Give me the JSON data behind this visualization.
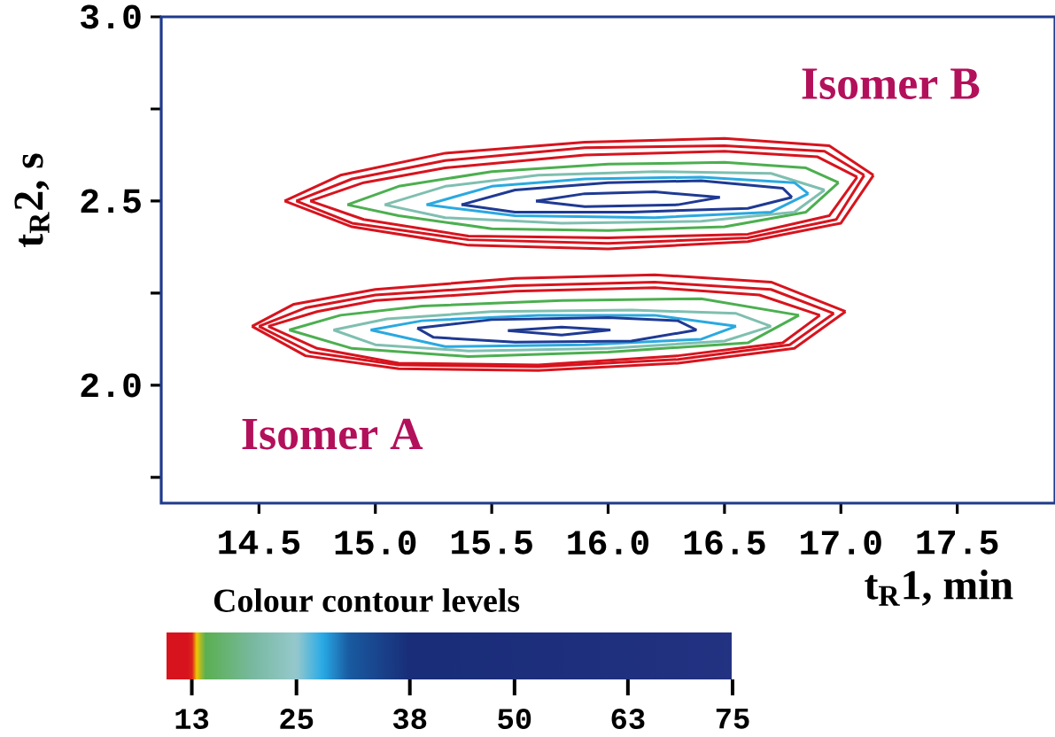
{
  "chart_data": {
    "type": "line",
    "xlabel": "t$_{R}$1, min",
    "ylabel": "t$_{R}$2, s",
    "clabel": "Colour contour levels",
    "annotations": [
      "Isomer B",
      "Isomer A"
    ],
    "xlim": [
      14.08,
      17.92
    ],
    "ylim": [
      1.68,
      3.0
    ],
    "xticks": [
      14.5,
      {
        "value": 15,
        "label": "15.0"
      },
      15.5,
      {
        "value": 16,
        "label": "16.0"
      },
      16.5,
      {
        "value": 17,
        "label": "17.0"
      },
      17.5
    ],
    "yticks": [
      {
        "value": 1.75,
        "label": null
      },
      {
        "value": 2,
        "label": "2.0"
      },
      {
        "value": 2.25,
        "label": null
      },
      2.5,
      {
        "value": 2.75,
        "label": null
      },
      {
        "value": 3,
        "label": "3.0"
      }
    ],
    "clim": [
      10,
      75
    ],
    "cticks": [
      13,
      25,
      38,
      50,
      63,
      75
    ],
    "series": [
      {
        "color": "#d7141e",
        "x": [
          14.61,
          14.85,
          15.3,
          15.9,
          16.5,
          16.95,
          17.14
        ],
        "values": [
          2.5,
          2.57,
          2.63,
          2.66,
          2.67,
          2.65,
          2.57
        ]
      },
      {
        "color": "#d7141e",
        "x": [
          14.61,
          14.9,
          15.4,
          16.0,
          16.6,
          17.0,
          17.14
        ],
        "values": [
          2.5,
          2.43,
          2.38,
          2.37,
          2.39,
          2.44,
          2.57
        ]
      },
      {
        "color": "#d7141e",
        "x": [
          14.66,
          14.9,
          15.3,
          15.9,
          16.5,
          16.93,
          17.1
        ],
        "values": [
          2.5,
          2.56,
          2.61,
          2.645,
          2.65,
          2.635,
          2.57
        ]
      },
      {
        "color": "#d7141e",
        "x": [
          14.66,
          14.9,
          15.4,
          16.0,
          16.6,
          16.98,
          17.1
        ],
        "values": [
          2.5,
          2.44,
          2.395,
          2.385,
          2.4,
          2.45,
          2.57
        ]
      },
      {
        "color": "#d7141e",
        "x": [
          14.72,
          14.95,
          15.3,
          15.9,
          16.5,
          16.9,
          17.07
        ],
        "values": [
          2.5,
          2.55,
          2.59,
          2.625,
          2.635,
          2.62,
          2.565
        ]
      },
      {
        "color": "#d7141e",
        "x": [
          14.72,
          14.95,
          15.4,
          16.0,
          16.6,
          16.95,
          17.07
        ],
        "values": [
          2.5,
          2.45,
          2.405,
          2.4,
          2.41,
          2.46,
          2.565
        ]
      },
      {
        "color": "#4caf50",
        "x": [
          14.88,
          15.1,
          15.5,
          16.0,
          16.5,
          16.85,
          16.99
        ],
        "values": [
          2.49,
          2.54,
          2.58,
          2.6,
          2.605,
          2.59,
          2.55
        ]
      },
      {
        "color": "#4caf50",
        "x": [
          14.88,
          15.1,
          15.5,
          16.0,
          16.5,
          16.85,
          16.99
        ],
        "values": [
          2.49,
          2.46,
          2.425,
          2.42,
          2.43,
          2.47,
          2.55
        ]
      },
      {
        "color": "#7fbfb0",
        "x": [
          15.04,
          15.3,
          15.7,
          16.2,
          16.7,
          16.93
        ],
        "values": [
          2.49,
          2.54,
          2.57,
          2.58,
          2.575,
          2.53
        ]
      },
      {
        "color": "#7fbfb0",
        "x": [
          15.04,
          15.3,
          15.8,
          16.4,
          16.8,
          16.93
        ],
        "values": [
          2.49,
          2.455,
          2.44,
          2.445,
          2.47,
          2.53
        ]
      },
      {
        "color": "#2aa9e0",
        "x": [
          15.22,
          15.5,
          15.9,
          16.4,
          16.8,
          16.86
        ],
        "values": [
          2.49,
          2.54,
          2.56,
          2.565,
          2.55,
          2.52
        ]
      },
      {
        "color": "#2aa9e0",
        "x": [
          15.22,
          15.6,
          16.2,
          16.7,
          16.86
        ],
        "values": [
          2.49,
          2.46,
          2.455,
          2.47,
          2.52
        ]
      },
      {
        "color": "#1f3a93",
        "x": [
          15.37,
          15.6,
          16.0,
          16.4,
          16.75,
          16.79
        ],
        "values": [
          2.49,
          2.53,
          2.55,
          2.555,
          2.535,
          2.51
        ]
      },
      {
        "color": "#1f3a93",
        "x": [
          15.37,
          15.6,
          16.1,
          16.6,
          16.79
        ],
        "values": [
          2.49,
          2.47,
          2.47,
          2.48,
          2.51
        ]
      },
      {
        "color": "#1f3a93",
        "x": [
          15.69,
          15.9,
          16.2,
          16.48
        ],
        "values": [
          2.5,
          2.52,
          2.525,
          2.51
        ]
      },
      {
        "color": "#1f3a93",
        "x": [
          15.69,
          15.9,
          16.3,
          16.48
        ],
        "values": [
          2.5,
          2.485,
          2.49,
          2.51
        ]
      },
      {
        "color": "#d7141e",
        "x": [
          14.47,
          14.65,
          15.0,
          15.6,
          16.2,
          16.7,
          17.02
        ],
        "values": [
          2.16,
          2.22,
          2.26,
          2.29,
          2.3,
          2.28,
          2.2
        ]
      },
      {
        "color": "#d7141e",
        "x": [
          14.47,
          14.7,
          15.1,
          15.7,
          16.3,
          16.8,
          17.02
        ],
        "values": [
          2.16,
          2.08,
          2.045,
          2.04,
          2.06,
          2.1,
          2.2
        ]
      },
      {
        "color": "#d7141e",
        "x": [
          14.5,
          14.7,
          15.0,
          15.6,
          16.2,
          16.7,
          16.97
        ],
        "values": [
          2.16,
          2.21,
          2.245,
          2.27,
          2.28,
          2.26,
          2.195
        ]
      },
      {
        "color": "#d7141e",
        "x": [
          14.5,
          14.72,
          15.1,
          15.7,
          16.3,
          16.78,
          16.97
        ],
        "values": [
          2.16,
          2.09,
          2.055,
          2.05,
          2.07,
          2.11,
          2.195
        ]
      },
      {
        "color": "#d7141e",
        "x": [
          14.54,
          14.75,
          15.0,
          15.6,
          16.2,
          16.65,
          16.91
        ],
        "values": [
          2.16,
          2.2,
          2.23,
          2.255,
          2.265,
          2.245,
          2.19
        ]
      },
      {
        "color": "#d7141e",
        "x": [
          14.54,
          14.75,
          15.1,
          15.7,
          16.3,
          16.75,
          16.91
        ],
        "values": [
          2.16,
          2.1,
          2.06,
          2.055,
          2.08,
          2.115,
          2.19
        ]
      },
      {
        "color": "#4caf50",
        "x": [
          14.63,
          14.85,
          15.2,
          15.8,
          16.4,
          16.82
        ],
        "values": [
          2.15,
          2.19,
          2.215,
          2.23,
          2.235,
          2.19
        ]
      },
      {
        "color": "#4caf50",
        "x": [
          14.63,
          14.9,
          15.4,
          16.0,
          16.6,
          16.82
        ],
        "values": [
          2.15,
          2.1,
          2.078,
          2.09,
          2.115,
          2.19
        ]
      },
      {
        "color": "#7fbfb0",
        "x": [
          14.82,
          15.05,
          15.5,
          16.1,
          16.55,
          16.7
        ],
        "values": [
          2.15,
          2.18,
          2.2,
          2.204,
          2.195,
          2.16
        ]
      },
      {
        "color": "#7fbfb0",
        "x": [
          14.82,
          15.0,
          15.4,
          16.0,
          16.5,
          16.7
        ],
        "values": [
          2.15,
          2.11,
          2.093,
          2.1,
          2.12,
          2.16
        ]
      },
      {
        "color": "#2aa9e0",
        "x": [
          14.98,
          15.2,
          15.7,
          16.2,
          16.55
        ],
        "values": [
          2.15,
          2.175,
          2.19,
          2.19,
          2.16
        ]
      },
      {
        "color": "#2aa9e0",
        "x": [
          14.98,
          15.3,
          15.9,
          16.4,
          16.55
        ],
        "values": [
          2.15,
          2.105,
          2.11,
          2.125,
          2.16
        ]
      },
      {
        "color": "#1f3a93",
        "x": [
          15.18,
          15.5,
          16.0,
          16.3,
          16.38
        ],
        "values": [
          2.155,
          2.178,
          2.184,
          2.175,
          2.15
        ]
      },
      {
        "color": "#1f3a93",
        "x": [
          15.18,
          15.25,
          15.6,
          16.1,
          16.38
        ],
        "values": [
          2.155,
          2.13,
          2.117,
          2.12,
          2.15
        ]
      },
      {
        "color": "#1f3a93",
        "x": [
          15.57,
          15.8,
          16.01
        ],
        "values": [
          2.148,
          2.158,
          2.15
        ]
      },
      {
        "color": "#1f3a93",
        "x": [
          15.57,
          15.8,
          16.01
        ],
        "values": [
          2.148,
          2.136,
          2.15
        ]
      }
    ]
  }
}
